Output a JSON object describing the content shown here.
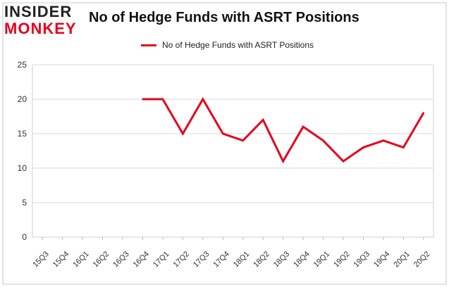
{
  "logo": {
    "line1": "INSIDER",
    "line2": "MONKEY"
  },
  "chart_data": {
    "type": "line",
    "title": "No of Hedge Funds with ASRT Positions",
    "xlabel": "",
    "ylabel": "",
    "categories": [
      "15Q3",
      "15Q4",
      "16Q1",
      "16Q2",
      "16Q3",
      "16Q4",
      "17Q1",
      "17Q2",
      "17Q3",
      "17Q4",
      "18Q1",
      "18Q2",
      "18Q3",
      "18Q4",
      "19Q1",
      "19Q2",
      "19Q3",
      "19Q4",
      "20Q1",
      "20Q2"
    ],
    "series": [
      {
        "name": "No of Hedge Funds with ASRT Positions",
        "color": "#e8001c",
        "values": [
          null,
          null,
          null,
          null,
          null,
          20,
          20,
          15,
          20,
          15,
          14,
          17,
          11,
          16,
          14,
          11,
          13,
          14,
          13,
          18
        ]
      }
    ],
    "yticks": [
      0,
      5,
      10,
      15,
      20,
      25
    ],
    "ylim": [
      0,
      25
    ],
    "grid": true,
    "legend_position": "top"
  }
}
